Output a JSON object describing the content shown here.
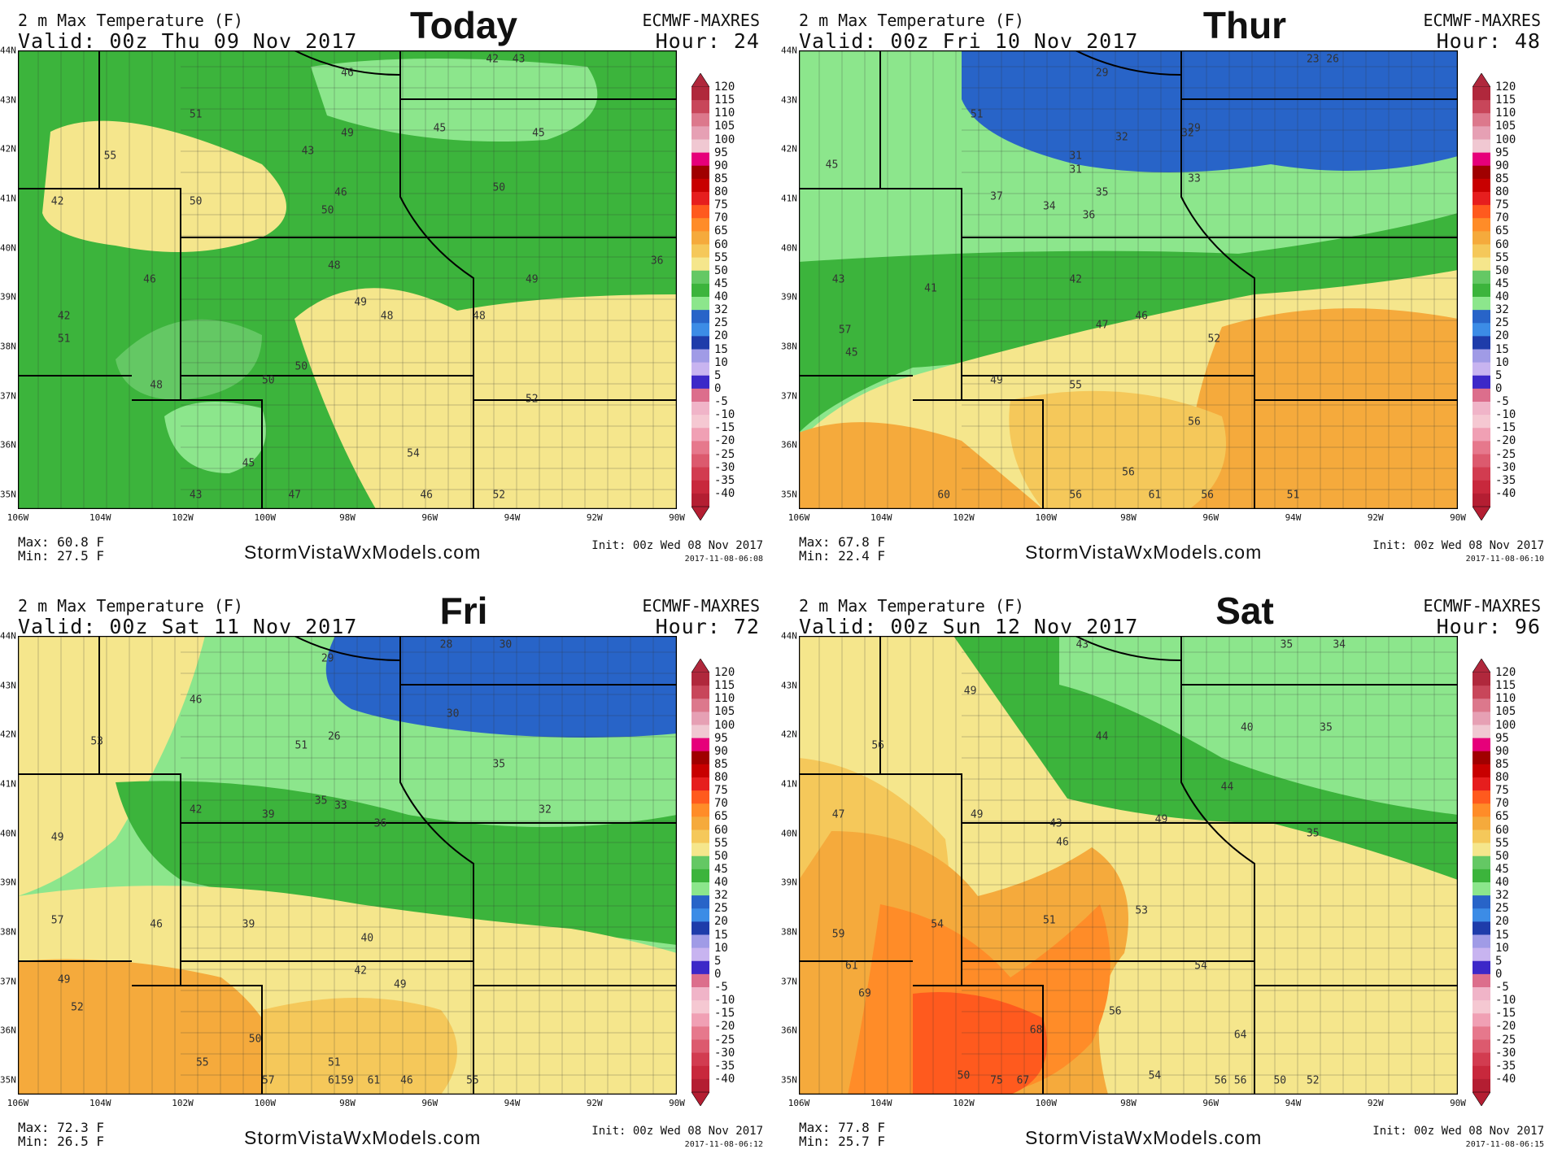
{
  "panels": [
    {
      "title": "2 m Max Temperature (F)",
      "valid": "Valid: 00z Thu 09 Nov 2017",
      "model": "ECMWF-MAXRES",
      "hour": "Hour: 24",
      "day_label": "Today",
      "max": "Max: 60.8 F",
      "min": "Min: 27.5 F",
      "site": "StormVistaWxModels.com",
      "init": "Init: 00z Wed 08 Nov 2017",
      "timestamp": "2017-11-08-06:08",
      "points": [
        "46",
        "42",
        "43",
        "51",
        "55",
        "49",
        "43",
        "45",
        "50",
        "46",
        "50",
        "45",
        "42",
        "50",
        "46",
        "42",
        "48",
        "48",
        "49",
        "51",
        "50",
        "49",
        "48",
        "50",
        "52",
        "48",
        "54",
        "45",
        "47",
        "46",
        "52",
        "43",
        "36"
      ]
    },
    {
      "title": "2 m Max Temperature (F)",
      "valid": "Valid: 00z Fri 10 Nov 2017",
      "model": "ECMWF-MAXRES",
      "hour": "Hour: 48",
      "day_label": "Thur",
      "max": "Max: 67.8 F",
      "min": "Min: 22.4 F",
      "site": "StormVistaWxModels.com",
      "init": "Init: 00z Wed 08 Nov 2017",
      "timestamp": "2017-11-08-06:10",
      "points": [
        "29",
        "23",
        "26",
        "51",
        "32",
        "29",
        "45",
        "31",
        "32",
        "31",
        "37",
        "34",
        "35",
        "33",
        "36",
        "43",
        "41",
        "42",
        "46",
        "47",
        "57",
        "45",
        "49",
        "55",
        "52",
        "56",
        "56",
        "60",
        "56",
        "56",
        "61",
        "51"
      ]
    },
    {
      "title": "2 m Max Temperature (F)",
      "valid": "Valid: 00z Sat 11 Nov 2017",
      "model": "ECMWF-MAXRES",
      "hour": "Hour: 72",
      "day_label": "Fri",
      "max": "Max: 72.3 F",
      "min": "Min: 26.5 F",
      "site": "StormVistaWxModels.com",
      "init": "Init: 00z Wed 08 Nov 2017",
      "timestamp": "2017-11-08-06:12",
      "points": [
        "29",
        "28",
        "30",
        "46",
        "30",
        "35",
        "53",
        "51",
        "26",
        "42",
        "39",
        "35",
        "36",
        "33",
        "32",
        "49",
        "57",
        "46",
        "39",
        "40",
        "49",
        "42",
        "49",
        "52",
        "55",
        "50",
        "51",
        "57",
        "61",
        "61",
        "59",
        "46",
        "55"
      ]
    },
    {
      "title": "2 m Max Temperature (F)",
      "valid": "Valid: 00z Sun 12 Nov 2017",
      "model": "ECMWF-MAXRES",
      "hour": "Hour: 96",
      "day_label": "Sat",
      "max": "Max: 77.8 F",
      "min": "Min: 25.7 F",
      "site": "StormVistaWxModels.com",
      "init": "Init: 00z Wed 08 Nov 2017",
      "timestamp": "2017-11-08-06:15",
      "points": [
        "43",
        "35",
        "34",
        "49",
        "56",
        "44",
        "40",
        "35",
        "47",
        "49",
        "43",
        "49",
        "46",
        "44",
        "35",
        "59",
        "54",
        "51",
        "53",
        "54",
        "61",
        "69",
        "68",
        "56",
        "50",
        "54",
        "67",
        "56",
        "75",
        "64",
        "50",
        "56",
        "52"
      ]
    }
  ],
  "lat_labels": [
    "44N",
    "43N",
    "42N",
    "41N",
    "40N",
    "39N",
    "38N",
    "37N",
    "36N",
    "35N"
  ],
  "lon_labels": [
    "106W",
    "104W",
    "102W",
    "100W",
    "98W",
    "96W",
    "94W",
    "92W",
    "90W"
  ],
  "colorbar": {
    "labels": [
      "120",
      "115",
      "110",
      "105",
      "100",
      "95",
      "90",
      "85",
      "80",
      "75",
      "70",
      "65",
      "60",
      "55",
      "50",
      "45",
      "40",
      "32",
      "25",
      "20",
      "15",
      "10",
      "5",
      "0",
      "-5",
      "-10",
      "-15",
      "-20",
      "-25",
      "-30",
      "-35",
      "-40"
    ],
    "colors": [
      "#b0283c",
      "#c8465a",
      "#dc788c",
      "#e6a0b4",
      "#f0c8d2",
      "#e6007a",
      "#a00000",
      "#c80000",
      "#e61e1e",
      "#ff5a1e",
      "#ff8c28",
      "#f5aa3c",
      "#f5c85a",
      "#f5e68c",
      "#64c864",
      "#3cb43c",
      "#8ce68c",
      "#2864c8",
      "#3c8ce6",
      "#1e3caa",
      "#a09be6",
      "#c8b4f0",
      "#3c28c8",
      "#dc6e8c",
      "#f0b4c8",
      "#f5c8d2",
      "#f0a0b4",
      "#e6788c",
      "#dc5a6e",
      "#d23c50",
      "#c8283c",
      "#b41e32"
    ]
  }
}
